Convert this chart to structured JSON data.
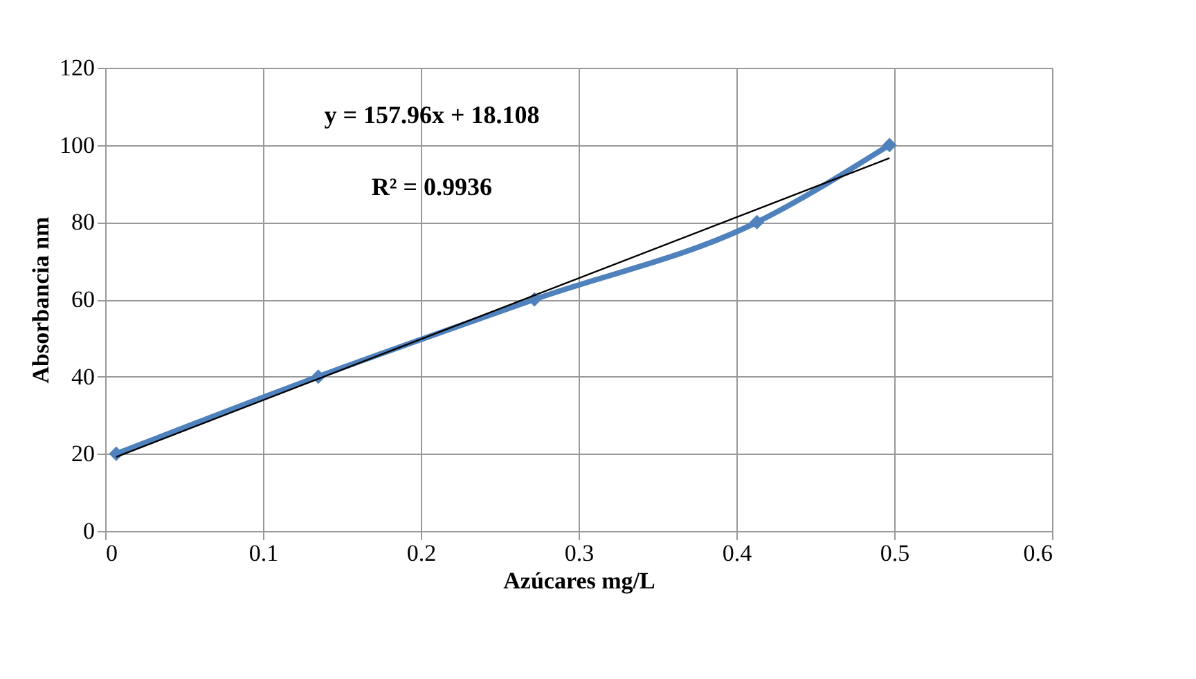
{
  "chart_data": {
    "type": "line",
    "xlabel": "Azúcares mg/L",
    "ylabel": "Absorbancia nm",
    "annotations": [
      "y = 157.96x + 18.108",
      "R² = 0.9936"
    ],
    "series": [
      {
        "color": "#4f81bd",
        "x": [
          0.007,
          0.135,
          0.272,
          0.413,
          0.497
        ],
        "values": [
          20,
          40,
          60,
          80,
          100
        ],
        "marker": "diamond"
      },
      {
        "type": "line",
        "color": "#000000",
        "x": [
          0.007,
          0.497
        ],
        "values": [
          19.2,
          96.6
        ],
        "marker": "none"
      }
    ],
    "xlim": [
      0,
      0.6
    ],
    "xticks": [
      0,
      0.1,
      0.2,
      0.3,
      0.4,
      0.5,
      0.6
    ],
    "ylim": [
      0,
      120
    ],
    "yticks": [
      0,
      20,
      40,
      60,
      80,
      100,
      120
    ],
    "grid": true,
    "line_style": "solid"
  }
}
